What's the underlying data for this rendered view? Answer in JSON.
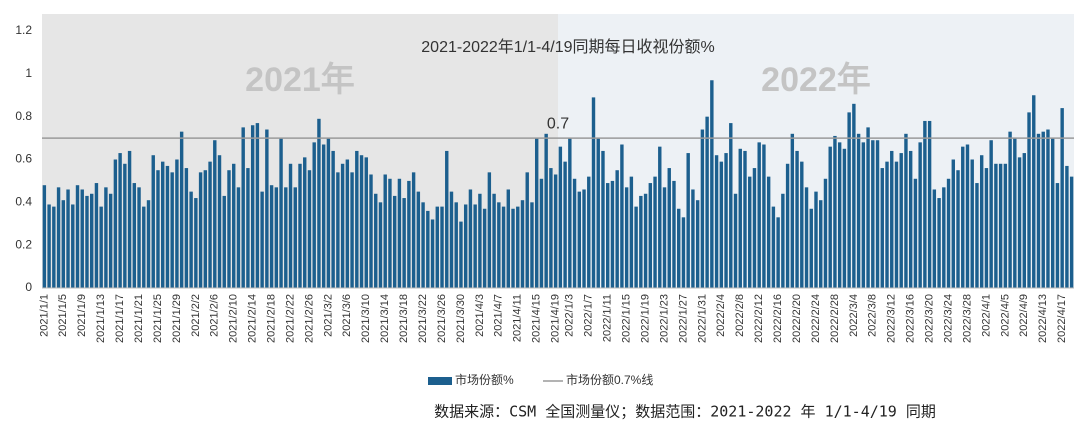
{
  "chart_data": {
    "type": "bar",
    "title": "2021-2022年1/1-4/19同期每日收视份额%",
    "regions": [
      {
        "label": "2021年",
        "color": "#e6e6e6"
      },
      {
        "label": "2022年",
        "color": "#edf1f5"
      }
    ],
    "categories": [
      "2021/1/1",
      null,
      null,
      null,
      "2021/1/5",
      null,
      null,
      null,
      "2021/1/9",
      null,
      null,
      null,
      "2021/1/13",
      null,
      null,
      null,
      "2021/1/17",
      null,
      null,
      null,
      "2021/1/21",
      null,
      null,
      null,
      "2021/1/25",
      null,
      null,
      null,
      "2021/1/29",
      null,
      null,
      null,
      "2021/2/2",
      null,
      null,
      null,
      "2021/2/6",
      null,
      null,
      null,
      "2021/2/10",
      null,
      null,
      null,
      "2021/2/14",
      null,
      null,
      null,
      "2021/2/18",
      null,
      null,
      null,
      "2021/2/22",
      null,
      null,
      null,
      "2021/2/26",
      null,
      null,
      null,
      "2021/3/2",
      null,
      null,
      null,
      "2021/3/6",
      null,
      null,
      null,
      "2021/3/10",
      null,
      null,
      null,
      "2021/3/14",
      null,
      null,
      null,
      "2021/3/18",
      null,
      null,
      null,
      "2021/3/22",
      null,
      null,
      null,
      "2021/3/26",
      null,
      null,
      null,
      "2021/3/30",
      null,
      null,
      null,
      "2021/4/3",
      null,
      null,
      null,
      "2021/4/7",
      null,
      null,
      null,
      "2021/4/11",
      null,
      null,
      null,
      "2021/4/15",
      null,
      null,
      null,
      "2021/4/19",
      null,
      null,
      "2022/1/3",
      null,
      null,
      null,
      "2022/1/7",
      null,
      null,
      null,
      "2022/1/11",
      null,
      null,
      null,
      "2022/1/15",
      null,
      null,
      null,
      "2022/1/19",
      null,
      null,
      null,
      "2022/1/23",
      null,
      null,
      null,
      "2022/1/27",
      null,
      null,
      null,
      "2022/1/31",
      null,
      null,
      null,
      "2022/2/4",
      null,
      null,
      null,
      "2022/2/8",
      null,
      null,
      null,
      "2022/2/12",
      null,
      null,
      null,
      "2022/2/16",
      null,
      null,
      null,
      "2022/2/20",
      null,
      null,
      null,
      "2022/2/24",
      null,
      null,
      null,
      "2022/2/28",
      null,
      null,
      null,
      "2022/3/4",
      null,
      null,
      null,
      "2022/3/8",
      null,
      null,
      null,
      "2022/3/12",
      null,
      null,
      null,
      "2022/3/16",
      null,
      null,
      null,
      "2022/3/20",
      null,
      null,
      null,
      "2022/3/24",
      null,
      null,
      null,
      "2022/3/28",
      null,
      null,
      null,
      "2022/4/1",
      null,
      null,
      null,
      "2022/4/5",
      null,
      null,
      null,
      "2022/4/9",
      null,
      null,
      null,
      "2022/4/13",
      null,
      null,
      null,
      "2022/4/17",
      null,
      null
    ],
    "series": [
      {
        "name": "市场份额%",
        "color": "#1c5f8e",
        "values": [
          0.48,
          0.39,
          0.38,
          0.47,
          0.41,
          0.46,
          0.39,
          0.48,
          0.46,
          0.43,
          0.44,
          0.49,
          0.38,
          0.47,
          0.44,
          0.6,
          0.63,
          0.58,
          0.64,
          0.49,
          0.47,
          0.38,
          0.41,
          0.62,
          0.55,
          0.59,
          0.57,
          0.54,
          0.6,
          0.73,
          0.56,
          0.45,
          0.42,
          0.54,
          0.55,
          0.59,
          0.69,
          0.62,
          0.43,
          0.55,
          0.58,
          0.47,
          0.75,
          0.56,
          0.76,
          0.77,
          0.45,
          0.74,
          0.48,
          0.47,
          0.7,
          0.47,
          0.58,
          0.47,
          0.58,
          0.61,
          0.55,
          0.68,
          0.79,
          0.67,
          0.7,
          0.64,
          0.54,
          0.58,
          0.6,
          0.54,
          0.64,
          0.62,
          0.61,
          0.53,
          0.44,
          0.4,
          0.53,
          0.51,
          0.43,
          0.51,
          0.42,
          0.5,
          0.54,
          0.45,
          0.4,
          0.36,
          0.32,
          0.38,
          0.38,
          0.64,
          0.45,
          0.4,
          0.31,
          0.39,
          0.46,
          0.39,
          0.44,
          0.37,
          0.54,
          0.44,
          0.4,
          0.38,
          0.46,
          0.37,
          0.38,
          0.41,
          0.54,
          0.4,
          0.7,
          0.51,
          0.72,
          0.56,
          0.53,
          0.66,
          0.59,
          0.7,
          0.51,
          0.45,
          0.46,
          0.52,
          0.89,
          0.7,
          0.64,
          0.49,
          0.5,
          0.55,
          0.67,
          0.47,
          0.52,
          0.38,
          0.43,
          0.44,
          0.49,
          0.52,
          0.66,
          0.47,
          0.56,
          0.5,
          0.37,
          0.33,
          0.63,
          0.46,
          0.41,
          0.74,
          0.8,
          0.97,
          0.62,
          0.59,
          0.63,
          0.77,
          0.44,
          0.65,
          0.64,
          0.52,
          0.56,
          0.68,
          0.67,
          0.52,
          0.38,
          0.33,
          0.44,
          0.58,
          0.72,
          0.64,
          0.59,
          0.47,
          0.37,
          0.45,
          0.41,
          0.51,
          0.66,
          0.71,
          0.68,
          0.65,
          0.82,
          0.86,
          0.72,
          0.68,
          0.75,
          0.69,
          0.69,
          0.56,
          0.59,
          0.64,
          0.59,
          0.63,
          0.72,
          0.64,
          0.51,
          0.68,
          0.78,
          0.78,
          0.46,
          0.42,
          0.47,
          0.51,
          0.6,
          0.55,
          0.66,
          0.67,
          0.6,
          0.49,
          0.62,
          0.56,
          0.69,
          0.58,
          0.58,
          0.58,
          0.73,
          0.7,
          0.61,
          0.63,
          0.82,
          0.9,
          0.72,
          0.73,
          0.74,
          0.7,
          0.49,
          0.84,
          0.57,
          0.52
        ]
      }
    ],
    "reference_line": {
      "name": "市场份额0.7%线",
      "value": 0.7,
      "color": "#9a9a9a"
    },
    "ylim": [
      0,
      1.2
    ],
    "yticks": [
      0,
      0.2,
      0.4,
      0.6,
      0.8,
      1,
      1.2
    ],
    "source": "数据来源：CSM 全国测量仪；数据范围：2021-2022 年 1/1-4/19 同期"
  }
}
